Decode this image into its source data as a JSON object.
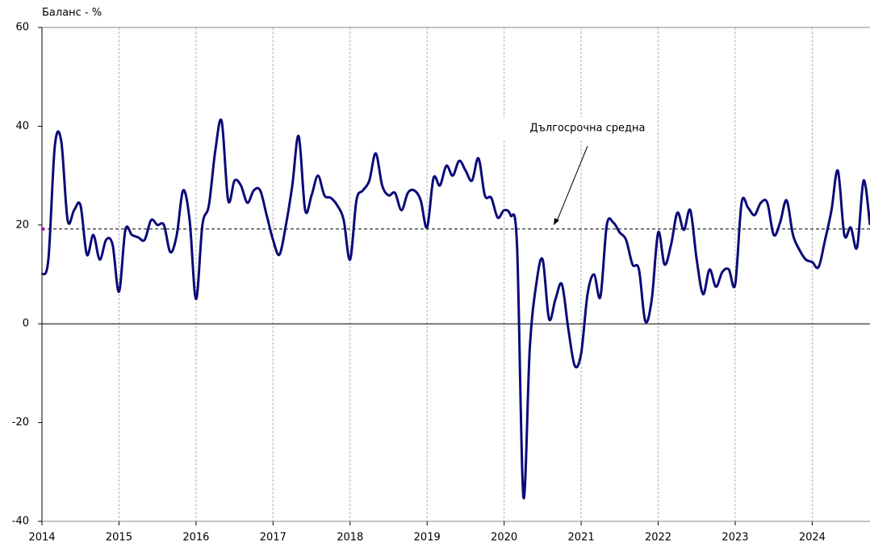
{
  "chart_data": {
    "type": "line",
    "y_axis_label": "Баланс - %",
    "annotation": "Дългосрочна средна",
    "long_term_average": 19.2,
    "xlim": [
      2014,
      2024.75
    ],
    "xticks": [
      2014,
      2015,
      2016,
      2017,
      2018,
      2019,
      2020,
      2021,
      2022,
      2023,
      2024
    ],
    "ylim": [
      -40,
      60
    ],
    "yticks": [
      -40,
      -20,
      0,
      20,
      40,
      60
    ],
    "grid": true,
    "x": [
      2014,
      2014.083,
      2014.167,
      2014.25,
      2014.333,
      2014.417,
      2014.5,
      2014.583,
      2014.667,
      2014.75,
      2014.833,
      2014.917,
      2015,
      2015.083,
      2015.167,
      2015.25,
      2015.333,
      2015.417,
      2015.5,
      2015.583,
      2015.667,
      2015.75,
      2015.833,
      2015.917,
      2016,
      2016.083,
      2016.167,
      2016.25,
      2016.333,
      2016.417,
      2016.5,
      2016.583,
      2016.667,
      2016.75,
      2016.833,
      2016.917,
      2017,
      2017.083,
      2017.167,
      2017.25,
      2017.333,
      2017.417,
      2017.5,
      2017.583,
      2017.667,
      2017.75,
      2017.833,
      2017.917,
      2018,
      2018.083,
      2018.167,
      2018.25,
      2018.333,
      2018.417,
      2018.5,
      2018.583,
      2018.667,
      2018.75,
      2018.833,
      2018.917,
      2019,
      2019.083,
      2019.167,
      2019.25,
      2019.333,
      2019.417,
      2019.5,
      2019.583,
      2019.667,
      2019.75,
      2019.833,
      2019.917,
      2020,
      2020.083,
      2020.167,
      2020.25,
      2020.333,
      2020.417,
      2020.5,
      2020.583,
      2020.667,
      2020.75,
      2020.833,
      2020.917,
      2021,
      2021.083,
      2021.167,
      2021.25,
      2021.333,
      2021.417,
      2021.5,
      2021.583,
      2021.667,
      2021.75,
      2021.833,
      2021.917,
      2022,
      2022.083,
      2022.167,
      2022.25,
      2022.333,
      2022.417,
      2022.5,
      2022.583,
      2022.667,
      2022.75,
      2022.833,
      2022.917,
      2023,
      2023.083,
      2023.167,
      2023.25,
      2023.333,
      2023.417,
      2023.5,
      2023.583,
      2023.667,
      2023.75,
      2023.833,
      2023.917,
      2024,
      2024.083,
      2024.167,
      2024.25,
      2024.333,
      2024.417,
      2024.5,
      2024.583,
      2024.667,
      2024.75
    ],
    "series": [
      {
        "color": "#0a0a78",
        "values": [
          10,
          13,
          36,
          37,
          21,
          23,
          24,
          14,
          18,
          13,
          17,
          16,
          6.5,
          19,
          18,
          17.5,
          17,
          21,
          20,
          20,
          14.5,
          18,
          27,
          21,
          5,
          20,
          24,
          35,
          41,
          25,
          29,
          28,
          24.5,
          27,
          27,
          22,
          17,
          14,
          20,
          28,
          38,
          23,
          26,
          30,
          26,
          25.5,
          24,
          21,
          13,
          25,
          27,
          29,
          34.5,
          28,
          26,
          26.5,
          23,
          26.5,
          27,
          25,
          19.5,
          29.5,
          28,
          32,
          30,
          33,
          31,
          29,
          33.5,
          26,
          25.5,
          21.5,
          23,
          22,
          16,
          -35,
          -5,
          8,
          13,
          1,
          5,
          8,
          -1,
          -8.5,
          -6,
          6,
          10,
          5.5,
          20,
          20.5,
          18.5,
          17,
          12,
          11,
          0.5,
          5,
          18.5,
          12,
          16,
          22.5,
          19,
          23,
          13,
          6,
          11,
          7.5,
          10.5,
          11,
          8,
          24.5,
          23.5,
          22,
          24.5,
          24.5,
          18,
          20.5,
          25,
          18,
          15,
          13,
          12.5,
          11.5,
          17,
          23,
          31,
          18,
          19.5,
          15.5,
          29,
          20
        ]
      }
    ]
  }
}
